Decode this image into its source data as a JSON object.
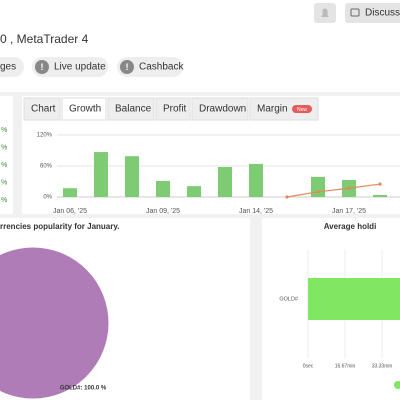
{
  "header": {
    "title": "0 , MetaTrader 4",
    "buttons": [
      "Discuss"
    ]
  },
  "chips": [
    "ges",
    "Live update",
    "Cashback"
  ],
  "left_stats": [
    "%",
    "%",
    "%",
    "%",
    "%"
  ],
  "tabs": [
    "Chart",
    "Growth",
    "Balance",
    "Profit",
    "Drawdown",
    "Margin"
  ],
  "tab_badge": "New",
  "growth_chart": {
    "type": "bar",
    "categories": [
      "Jan 06, '25",
      null,
      null,
      "Jan 09, '25",
      null,
      null,
      "Jan 14, '25",
      null,
      null,
      "Jan 17, '25",
      null
    ],
    "series": [
      {
        "type": "bar",
        "color": "#7dcb73",
        "values": [
          17,
          87,
          79,
          31,
          21,
          58,
          64,
          0,
          39,
          33,
          4
        ]
      },
      {
        "type": "line",
        "color": "#e0895a",
        "values": [
          null,
          null,
          null,
          null,
          null,
          null,
          null,
          0,
          10,
          17,
          25
        ]
      }
    ],
    "ylim": [
      0,
      120
    ],
    "yticks": [
      {
        "value": 0,
        "label": "0%"
      },
      {
        "value": 60,
        "label": "60%"
      },
      {
        "value": 120,
        "label": "120%"
      }
    ],
    "grid": true
  },
  "pie_chart": {
    "type": "pie",
    "title": "rrencies popularity for January.",
    "categories": [
      "GOLD#"
    ],
    "values": [
      100
    ],
    "value_labels": [
      "GOLD#: 100.0 %"
    ],
    "color": "#b07cb7"
  },
  "holding_chart": {
    "type": "hbar",
    "title": "Average holdi",
    "categories": [
      "GOLD#"
    ],
    "values": [
      45
    ],
    "color": "#80e860",
    "xlim": [
      0,
      50
    ],
    "xticks": [
      {
        "value": 0,
        "label": "0sec"
      },
      {
        "value": 16.67,
        "label": "16.67min"
      },
      {
        "value": 33.33,
        "label": "33.33min"
      }
    ]
  }
}
